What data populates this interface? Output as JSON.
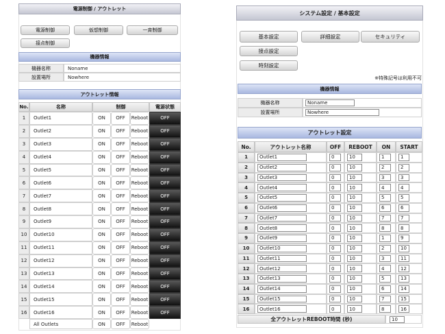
{
  "left": {
    "header": "電源制御 / アウトレット",
    "tabs": [
      "電源制御",
      "仮想制御",
      "一斉制御",
      "接点制御"
    ],
    "info_title": "機器情報",
    "info": [
      [
        "機器名称",
        "Noname"
      ],
      [
        "設置場所",
        "Nowhere"
      ]
    ],
    "outlet_title": "アウトレット情報",
    "columns": [
      "No.",
      "名称",
      "制御",
      "電源状態"
    ],
    "rows": [
      {
        "no": "1",
        "name": "Outlet1",
        "on": "ON",
        "off": "OFF",
        "reboot": "Reboot",
        "status": "OFF"
      },
      {
        "no": "2",
        "name": "Outlet2",
        "on": "ON",
        "off": "OFF",
        "reboot": "Reboot",
        "status": "OFF"
      },
      {
        "no": "3",
        "name": "Outlet3",
        "on": "ON",
        "off": "OFF",
        "reboot": "Reboot",
        "status": "OFF"
      },
      {
        "no": "4",
        "name": "Outlet4",
        "on": "ON",
        "off": "OFF",
        "reboot": "Reboot",
        "status": "OFF"
      },
      {
        "no": "5",
        "name": "Outlet5",
        "on": "ON",
        "off": "OFF",
        "reboot": "Reboot",
        "status": "OFF"
      },
      {
        "no": "6",
        "name": "Outlet6",
        "on": "ON",
        "off": "OFF",
        "reboot": "Reboot",
        "status": "OFF"
      },
      {
        "no": "7",
        "name": "Outlet7",
        "on": "ON",
        "off": "OFF",
        "reboot": "Reboot",
        "status": "OFF"
      },
      {
        "no": "8",
        "name": "Outlet8",
        "on": "ON",
        "off": "OFF",
        "reboot": "Reboot",
        "status": "OFF"
      },
      {
        "no": "9",
        "name": "Outlet9",
        "on": "ON",
        "off": "OFF",
        "reboot": "Reboot",
        "status": "OFF"
      },
      {
        "no": "10",
        "name": "Outlet10",
        "on": "ON",
        "off": "OFF",
        "reboot": "Reboot",
        "status": "OFF"
      },
      {
        "no": "11",
        "name": "Outlet11",
        "on": "ON",
        "off": "OFF",
        "reboot": "Reboot",
        "status": "OFF"
      },
      {
        "no": "12",
        "name": "Outlet12",
        "on": "ON",
        "off": "OFF",
        "reboot": "Reboot",
        "status": "OFF"
      },
      {
        "no": "13",
        "name": "Outlet13",
        "on": "ON",
        "off": "OFF",
        "reboot": "Reboot",
        "status": "OFF"
      },
      {
        "no": "14",
        "name": "Outlet14",
        "on": "ON",
        "off": "OFF",
        "reboot": "Reboot",
        "status": "OFF"
      },
      {
        "no": "15",
        "name": "Outlet15",
        "on": "ON",
        "off": "OFF",
        "reboot": "Reboot",
        "status": "OFF"
      },
      {
        "no": "16",
        "name": "Outlet16",
        "on": "ON",
        "off": "OFF",
        "reboot": "Reboot",
        "status": "OFF"
      }
    ],
    "all_row": {
      "name": "All Outlets",
      "on": "ON",
      "off": "OFF",
      "reboot": "Reboot"
    }
  },
  "right": {
    "header": "システム設定 / 基本設定",
    "tabs": [
      "基本設定",
      "詳細設定",
      "セキュリティ",
      "接点設定",
      "時刻設定"
    ],
    "note": "※特殊記号は利用不可",
    "info_title": "機器情報",
    "info": [
      [
        "機器名称",
        "Noname"
      ],
      [
        "設置場所",
        "Nowhere"
      ]
    ],
    "outlet_title": "アウトレット設定",
    "columns": [
      "No.",
      "アウトレット名称",
      "OFF",
      "REBOOT",
      "ON",
      "START"
    ],
    "rows": [
      {
        "no": "1",
        "name": "Outlet1",
        "off": "0",
        "reboot": "10",
        "on": "1",
        "start": "1"
      },
      {
        "no": "2",
        "name": "Outlet2",
        "off": "0",
        "reboot": "10",
        "on": "2",
        "start": "2"
      },
      {
        "no": "3",
        "name": "Outlet3",
        "off": "0",
        "reboot": "10",
        "on": "3",
        "start": "3"
      },
      {
        "no": "4",
        "name": "Outlet4",
        "off": "0",
        "reboot": "10",
        "on": "4",
        "start": "4"
      },
      {
        "no": "5",
        "name": "Outlet5",
        "off": "0",
        "reboot": "10",
        "on": "5",
        "start": "5"
      },
      {
        "no": "6",
        "name": "Outlet6",
        "off": "0",
        "reboot": "10",
        "on": "6",
        "start": "6"
      },
      {
        "no": "7",
        "name": "Outlet7",
        "off": "0",
        "reboot": "10",
        "on": "7",
        "start": "7"
      },
      {
        "no": "8",
        "name": "Outlet8",
        "off": "0",
        "reboot": "10",
        "on": "8",
        "start": "8"
      },
      {
        "no": "9",
        "name": "Outlet9",
        "off": "0",
        "reboot": "10",
        "on": "1",
        "start": "9"
      },
      {
        "no": "10",
        "name": "Outlet10",
        "off": "0",
        "reboot": "10",
        "on": "2",
        "start": "10"
      },
      {
        "no": "11",
        "name": "Outlet11",
        "off": "0",
        "reboot": "10",
        "on": "3",
        "start": "11"
      },
      {
        "no": "12",
        "name": "Outlet12",
        "off": "0",
        "reboot": "10",
        "on": "4",
        "start": "12"
      },
      {
        "no": "13",
        "name": "Outlet13",
        "off": "0",
        "reboot": "10",
        "on": "5",
        "start": "13"
      },
      {
        "no": "14",
        "name": "Outlet14",
        "off": "0",
        "reboot": "10",
        "on": "6",
        "start": "14"
      },
      {
        "no": "15",
        "name": "Outlet15",
        "off": "0",
        "reboot": "10",
        "on": "7",
        "start": "15"
      },
      {
        "no": "16",
        "name": "Outlet16",
        "off": "0",
        "reboot": "10",
        "on": "8",
        "start": "16"
      }
    ],
    "footer_label": "全アウトレットREBOOT時間 (秒)",
    "footer_value": "10"
  }
}
